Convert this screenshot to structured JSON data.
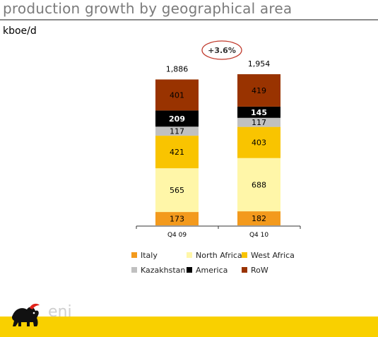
{
  "header": {
    "title": "production growth by geographical area",
    "unit": "kboe/d"
  },
  "growth_badge": "+3.6%",
  "logo_text": "eni",
  "colors": {
    "Italy": "#f39a1d",
    "North Africa": "#fff6a8",
    "West Africa": "#f9c400",
    "Kazakhstan": "#c0c0c0",
    "America": "#000000",
    "RoW": "#993300",
    "badge_border": "#c0392b",
    "footer": "#f9d000"
  },
  "chart_data": {
    "type": "bar",
    "stacked": true,
    "categories": [
      "Q4 09",
      "Q4 10"
    ],
    "totals": [
      "1,886",
      "1,954"
    ],
    "series": [
      {
        "name": "Italy",
        "values": [
          173,
          182
        ]
      },
      {
        "name": "North Africa",
        "values": [
          565,
          688
        ]
      },
      {
        "name": "West Africa",
        "values": [
          421,
          403
        ]
      },
      {
        "name": "Kazakhstan",
        "values": [
          117,
          117
        ]
      },
      {
        "name": "America",
        "values": [
          209,
          145
        ]
      },
      {
        "name": "RoW",
        "values": [
          401,
          419
        ]
      }
    ],
    "legend": [
      {
        "name": "Italy"
      },
      {
        "name": "North Africa"
      },
      {
        "name": "West Africa"
      },
      {
        "name": "Kazakhstan"
      },
      {
        "name": "America"
      },
      {
        "name": "RoW"
      }
    ],
    "legend_position": "bottom",
    "grid": false
  }
}
